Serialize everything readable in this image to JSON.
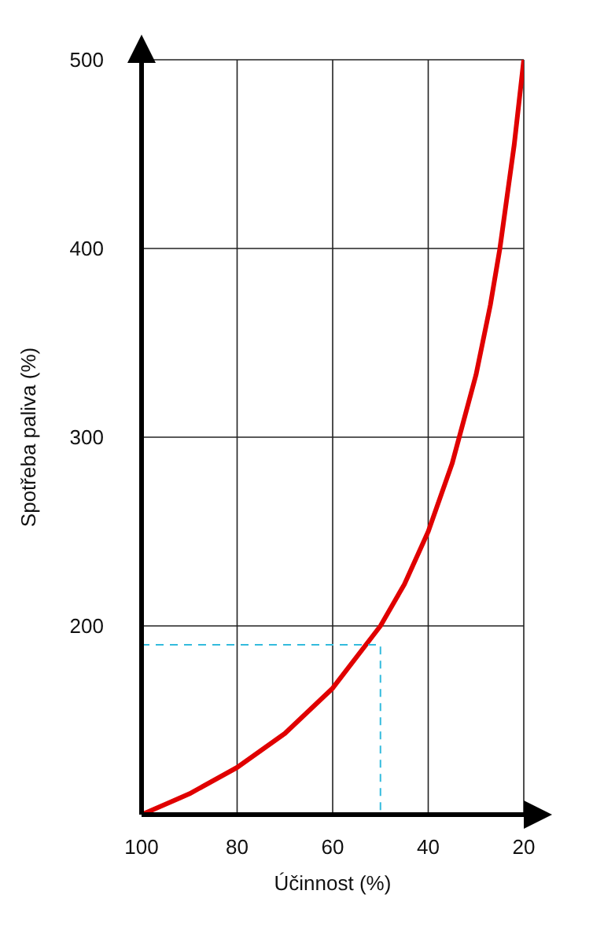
{
  "chart_data": {
    "type": "line",
    "xlabel": "Účinnost (%)",
    "ylabel": "Spotřeba paliva (%)",
    "xlim": [
      100,
      20
    ],
    "xticks": [
      100,
      80,
      60,
      40,
      20
    ],
    "ylim": [
      100,
      500
    ],
    "yticks": [
      200,
      300,
      400,
      500
    ],
    "grid": true,
    "marker": "none",
    "series": [
      {
        "color": "#e00000",
        "x": [
          100,
          90,
          80,
          70,
          60,
          50,
          45,
          40,
          35,
          30,
          27,
          25,
          22,
          20
        ],
        "values": [
          100,
          111,
          125,
          143,
          167,
          200,
          222,
          250,
          286,
          333,
          370,
          400,
          455,
          500
        ]
      },
      {
        "color": "#33bbdd",
        "line_style": "dashed",
        "x": [
          100,
          50,
          50
        ],
        "values": [
          190,
          190,
          100
        ]
      }
    ]
  }
}
